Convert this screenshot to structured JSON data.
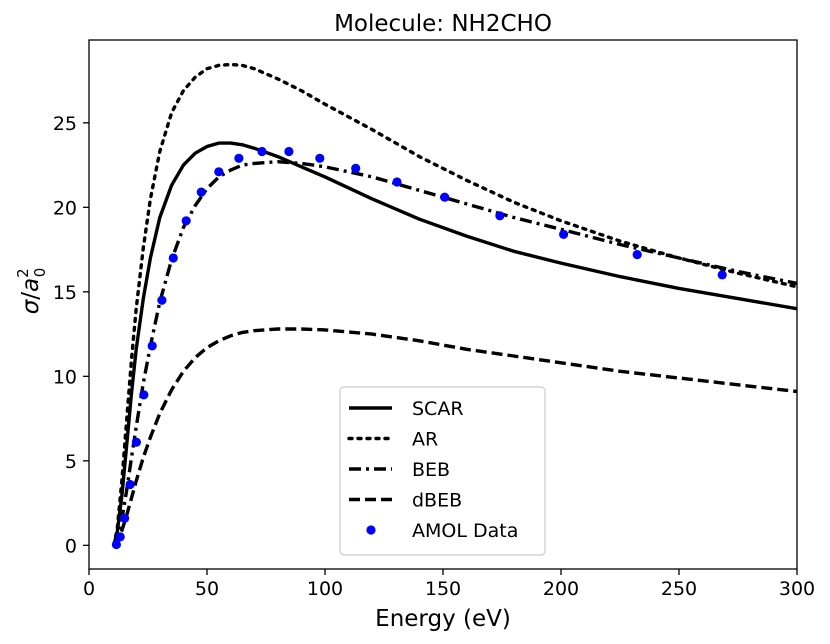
{
  "chart_data": {
    "type": "line",
    "title": "Molecule: NH2CHO",
    "xlabel": "Energy (eV)",
    "ylabel": "σ/a₀²",
    "xlim": [
      0,
      300
    ],
    "ylim": [
      -1.4,
      29.9
    ],
    "xticks": [
      0,
      50,
      100,
      150,
      200,
      250,
      300
    ],
    "yticks": [
      0,
      5,
      10,
      15,
      20,
      25
    ],
    "grid": false,
    "legend_position": "bottom-center",
    "series": [
      {
        "name": "SCAR",
        "style": "solid",
        "color": "#000000",
        "x": [
          10.5,
          12,
          14,
          16,
          18,
          20,
          23,
          26,
          30,
          35,
          40,
          45,
          50,
          55,
          60,
          65,
          70,
          80,
          90,
          100,
          120,
          140,
          160,
          180,
          200,
          225,
          250,
          275,
          300
        ],
        "y": [
          0,
          0.8,
          3.0,
          6.0,
          9.0,
          11.6,
          14.6,
          17.0,
          19.4,
          21.3,
          22.5,
          23.2,
          23.6,
          23.8,
          23.8,
          23.7,
          23.5,
          23.0,
          22.4,
          21.8,
          20.5,
          19.3,
          18.3,
          17.4,
          16.7,
          15.9,
          15.2,
          14.6,
          14.0
        ]
      },
      {
        "name": "AR",
        "style": "dotted",
        "color": "#000000",
        "x": [
          10.5,
          12,
          14,
          16,
          18,
          20,
          23,
          26,
          30,
          35,
          40,
          45,
          50,
          55,
          60,
          65,
          70,
          80,
          90,
          100,
          120,
          140,
          160,
          180,
          200,
          225,
          250,
          275,
          300
        ],
        "y": [
          0,
          1.0,
          3.9,
          7.5,
          11.0,
          14.0,
          17.6,
          20.5,
          23.3,
          25.6,
          26.9,
          27.7,
          28.2,
          28.4,
          28.45,
          28.4,
          28.2,
          27.6,
          26.9,
          26.1,
          24.6,
          23.0,
          21.6,
          20.3,
          19.2,
          18.0,
          17.0,
          16.1,
          15.3
        ]
      },
      {
        "name": "BEB",
        "style": "dashdot",
        "color": "#000000",
        "x": [
          10.5,
          12,
          14,
          16,
          18,
          20,
          23,
          26,
          30,
          35,
          40,
          45,
          50,
          55,
          60,
          65,
          70,
          80,
          90,
          100,
          120,
          140,
          160,
          180,
          200,
          225,
          250,
          275,
          300
        ],
        "y": [
          0,
          0.4,
          1.6,
          3.3,
          5.2,
          7.0,
          9.6,
          11.8,
          14.4,
          16.9,
          18.8,
          20.1,
          21.1,
          21.8,
          22.2,
          22.5,
          22.6,
          22.7,
          22.6,
          22.4,
          21.8,
          21.0,
          20.2,
          19.4,
          18.7,
          17.8,
          17.0,
          16.2,
          15.5
        ]
      },
      {
        "name": "dBEB",
        "style": "dashed",
        "color": "#000000",
        "x": [
          10.5,
          12,
          14,
          16,
          18,
          20,
          23,
          26,
          30,
          35,
          40,
          45,
          50,
          55,
          60,
          65,
          70,
          80,
          90,
          100,
          120,
          140,
          160,
          180,
          200,
          225,
          250,
          275,
          300
        ],
        "y": [
          0,
          0.2,
          0.9,
          1.8,
          2.8,
          3.8,
          5.2,
          6.4,
          7.8,
          9.2,
          10.3,
          11.1,
          11.7,
          12.1,
          12.4,
          12.6,
          12.7,
          12.8,
          12.8,
          12.75,
          12.5,
          12.1,
          11.6,
          11.2,
          10.8,
          10.3,
          9.9,
          9.5,
          9.1
        ]
      },
      {
        "name": "AMOL Data",
        "style": "markers",
        "color": "#0000ff",
        "x": [
          11.6,
          13.2,
          15.1,
          17.4,
          20.1,
          23.2,
          26.8,
          30.9,
          35.7,
          41.2,
          47.6,
          55.0,
          63.5,
          73.3,
          84.7,
          97.8,
          113.0,
          130.5,
          150.7,
          174.1,
          201.1,
          232.3,
          268.3
        ],
        "y": [
          0.05,
          0.5,
          1.6,
          3.6,
          6.1,
          8.9,
          11.8,
          14.5,
          17.0,
          19.2,
          20.9,
          22.1,
          22.9,
          23.3,
          23.3,
          22.9,
          22.3,
          21.5,
          20.6,
          19.5,
          18.4,
          17.2,
          16.0
        ]
      }
    ]
  },
  "colors": {
    "line": "#000000",
    "markers": "#0000ff",
    "legend_border": "#cccccc"
  }
}
